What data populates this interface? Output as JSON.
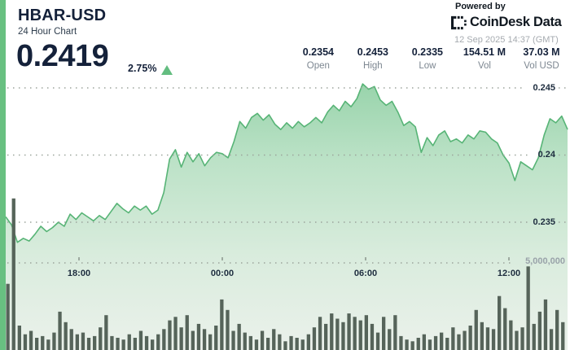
{
  "header": {
    "symbol": "HBAR-USD",
    "subtitle": "24 Hour Chart",
    "price": "0.2419",
    "change_percent": "2.75%",
    "trend": "up",
    "powered_by": "Powered by",
    "brand": "CoinDesk Data",
    "timestamp": "12 Sep 2025 14:37 (GMT)"
  },
  "stats": [
    {
      "value": "0.2354",
      "label": "Open"
    },
    {
      "value": "0.2453",
      "label": "High"
    },
    {
      "value": "0.2335",
      "label": "Low"
    },
    {
      "value": "154.51 M",
      "label": "Vol"
    },
    {
      "value": "37.03 M",
      "label": "Vol USD"
    }
  ],
  "colors": {
    "navy": "#14213a",
    "line_green": "#57b476",
    "triangle_green": "#63bd80",
    "stripe_green": "#68c081",
    "volume_bar": "#56645a",
    "grid": "#9ba49b",
    "label_gray": "#7d8791"
  },
  "chart_data": {
    "type": "area",
    "title": "HBAR-USD 24 Hour Chart",
    "x_axis": {
      "tick_labels": [
        "18:00",
        "00:00",
        "06:00",
        "12:00"
      ],
      "span_hours": 24
    },
    "y_axis_price": {
      "tick_labels": [
        "0.245",
        "0.24",
        "0.235"
      ],
      "tick_values": [
        0.245,
        0.24,
        0.235
      ]
    },
    "y_axis_volume": {
      "tick_label": "5,000,000",
      "tick_value": 5000000
    },
    "stats": {
      "open": 0.2354,
      "high": 0.2453,
      "low": 0.2335,
      "vol": "154.51 M",
      "vol_usd": "37.03 M"
    },
    "last_price": 0.2419,
    "change_percent": 2.75,
    "series": [
      {
        "name": "price",
        "type": "area",
        "values": [
          0.2354,
          0.2348,
          0.2335,
          0.2338,
          0.2336,
          0.2341,
          0.2347,
          0.2343,
          0.2346,
          0.235,
          0.2347,
          0.2356,
          0.2352,
          0.2357,
          0.2354,
          0.2351,
          0.2355,
          0.2352,
          0.2358,
          0.2364,
          0.236,
          0.2357,
          0.2362,
          0.2359,
          0.2362,
          0.2356,
          0.2359,
          0.2372,
          0.2397,
          0.2404,
          0.2391,
          0.2402,
          0.2395,
          0.2401,
          0.2392,
          0.2398,
          0.2402,
          0.2401,
          0.2398,
          0.241,
          0.2425,
          0.242,
          0.2428,
          0.2431,
          0.2426,
          0.243,
          0.2423,
          0.2419,
          0.2424,
          0.242,
          0.2425,
          0.2421,
          0.2424,
          0.2428,
          0.2424,
          0.2432,
          0.2437,
          0.2433,
          0.244,
          0.2436,
          0.2442,
          0.2453,
          0.2449,
          0.2451,
          0.2441,
          0.2437,
          0.244,
          0.2432,
          0.2422,
          0.2425,
          0.2421,
          0.2402,
          0.2413,
          0.2407,
          0.2415,
          0.2418,
          0.241,
          0.2412,
          0.2409,
          0.2415,
          0.2412,
          0.2418,
          0.2417,
          0.2412,
          0.2409,
          0.24,
          0.2394,
          0.2381,
          0.2395,
          0.2392,
          0.2389,
          0.2398,
          0.2415,
          0.2427,
          0.2424,
          0.2429,
          0.2419
        ]
      },
      {
        "name": "volume_millions",
        "type": "bar",
        "values": [
          3.8,
          8.7,
          1.4,
          0.9,
          1.1,
          0.7,
          0.8,
          0.6,
          1.0,
          2.2,
          1.6,
          1.2,
          0.9,
          1.0,
          0.7,
          0.8,
          1.3,
          2.0,
          0.8,
          0.7,
          0.6,
          0.9,
          0.7,
          1.1,
          0.8,
          0.6,
          0.9,
          1.2,
          1.7,
          1.9,
          1.3,
          2.0,
          1.1,
          1.5,
          1.2,
          0.9,
          1.4,
          2.9,
          2.3,
          1.1,
          1.5,
          1.0,
          0.8,
          0.6,
          1.1,
          0.7,
          1.2,
          0.9,
          0.5,
          0.8,
          0.7,
          0.6,
          0.9,
          1.3,
          1.9,
          1.5,
          2.1,
          1.8,
          1.6,
          2.1,
          1.9,
          1.7,
          2.0,
          1.5,
          1.0,
          1.9,
          1.2,
          2.0,
          0.8,
          0.6,
          0.5,
          0.7,
          0.9,
          0.6,
          0.8,
          1.0,
          0.7,
          1.3,
          0.9,
          1.1,
          1.4,
          2.3,
          1.6,
          1.3,
          1.2,
          3.1,
          2.4,
          1.7,
          1.1,
          1.3,
          4.8,
          1.5,
          2.2,
          2.9,
          1.2,
          2.3,
          1.6
        ]
      }
    ]
  }
}
